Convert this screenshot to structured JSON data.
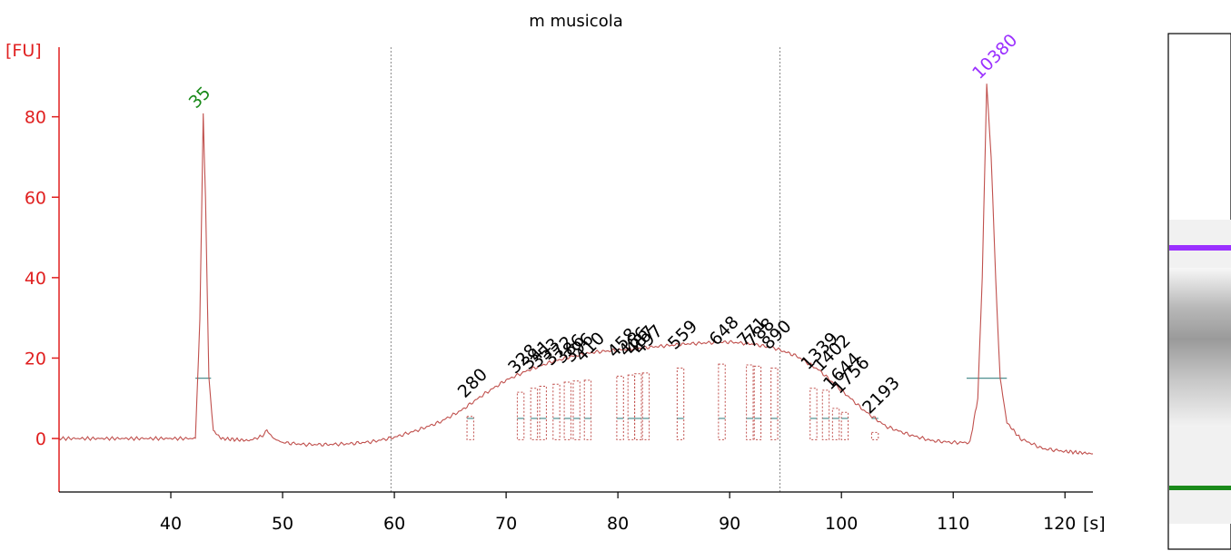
{
  "chart_data": {
    "type": "line",
    "title": "m musicola",
    "ylabel": "[FU]",
    "xlabel": "[s]",
    "xlim": [
      30.0,
      122.5
    ],
    "ylim": [
      -13.3,
      97.3
    ],
    "x_ticks": [
      40,
      50,
      60,
      70,
      80,
      90,
      100,
      110,
      120
    ],
    "y_ticks": [
      0,
      20,
      40,
      60,
      80
    ],
    "grid": false,
    "region_markers_x": [
      59.7,
      94.5
    ],
    "colors": {
      "axis": "#e02020",
      "trace": "#c0504d",
      "lower_marker": "#1a8a1a",
      "upper_marker": "#9b30ff",
      "region_line": "#888888"
    },
    "series": [
      {
        "x": [
          30,
          35,
          40,
          42.2,
          42.6,
          42.9,
          43.1,
          43.4,
          43.8,
          44.5,
          47,
          48.1,
          48.6,
          49.2,
          50,
          52,
          54,
          56,
          58,
          60,
          62,
          64,
          66,
          68,
          70,
          72,
          74,
          76,
          78,
          80,
          82,
          84,
          86,
          88,
          90,
          92,
          94,
          96,
          98,
          100,
          102,
          104,
          106,
          108,
          110,
          111.5,
          112.2,
          112.6,
          113.0,
          113.4,
          113.8,
          114.2,
          114.8,
          116,
          118,
          120,
          122.5
        ],
        "y": [
          0,
          0,
          0,
          0,
          30,
          80.5,
          60,
          15,
          2,
          0,
          -0.5,
          0.5,
          2,
          0,
          -1,
          -1.5,
          -1.5,
          -1.3,
          -0.8,
          0.3,
          2,
          4,
          7,
          11,
          14.5,
          17,
          19,
          20.5,
          21.5,
          22,
          22.5,
          23,
          23.5,
          23.8,
          24,
          23.5,
          22.5,
          20.5,
          17,
          12,
          7,
          3,
          1,
          -0.5,
          -1,
          -1,
          10,
          40,
          87.8,
          70,
          40,
          15,
          4,
          0,
          -2.5,
          -3.2,
          -3.8
        ]
      }
    ],
    "peaks": [
      {
        "label": "35",
        "x": 42.9,
        "y": 80.5,
        "color": "#1a8a1a"
      },
      {
        "label": "10380",
        "x": 113.0,
        "y": 87.8,
        "color": "#9b30ff"
      }
    ],
    "fragment_labels": [
      {
        "label": "280",
        "x": 66.8,
        "y": 9
      },
      {
        "label": "328",
        "x": 71.3,
        "y": 15
      },
      {
        "label": "341",
        "x": 72.5,
        "y": 16
      },
      {
        "label": "353",
        "x": 73.3,
        "y": 16.5
      },
      {
        "label": "372",
        "x": 74.5,
        "y": 17
      },
      {
        "label": "386",
        "x": 75.5,
        "y": 17.5
      },
      {
        "label": "396",
        "x": 76.3,
        "y": 17.8
      },
      {
        "label": "410",
        "x": 77.3,
        "y": 18
      },
      {
        "label": "458",
        "x": 80.2,
        "y": 19
      },
      {
        "label": "466",
        "x": 81.2,
        "y": 19.3
      },
      {
        "label": "487",
        "x": 81.8,
        "y": 19.6
      },
      {
        "label": "497",
        "x": 82.5,
        "y": 19.8
      },
      {
        "label": "559",
        "x": 85.6,
        "y": 21
      },
      {
        "label": "648",
        "x": 89.3,
        "y": 22
      },
      {
        "label": "771",
        "x": 91.8,
        "y": 21.8
      },
      {
        "label": "788",
        "x": 92.5,
        "y": 21.5
      },
      {
        "label": "890",
        "x": 94.0,
        "y": 21
      },
      {
        "label": "1339",
        "x": 97.5,
        "y": 16
      },
      {
        "label": "1402",
        "x": 98.6,
        "y": 15.5
      },
      {
        "label": "1644",
        "x": 99.5,
        "y": 11
      },
      {
        "label": "1756",
        "x": 100.3,
        "y": 10
      },
      {
        "label": "2193",
        "x": 103.0,
        "y": 5
      }
    ]
  },
  "gel": {
    "marker_colors": [
      "#9b30ff",
      "#1a8a1a"
    ]
  }
}
